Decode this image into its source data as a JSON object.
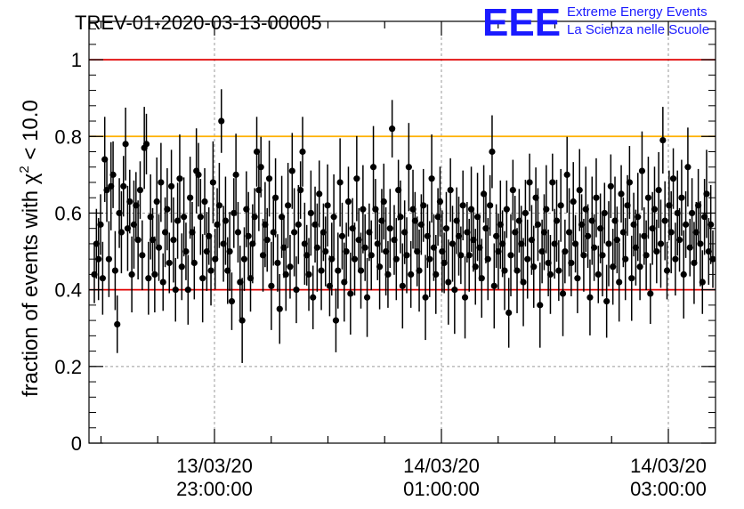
{
  "chart_data": {
    "type": "scatter",
    "title": "TREV-01-2020-03-13-00005",
    "ylabel_prefix": "fraction of events with χ",
    "ylabel_exp": "2",
    "ylabel_suffix": " < 10.0",
    "xlabel": "",
    "ylim": [
      0,
      1.1
    ],
    "yticks": [
      0,
      0.2,
      0.4,
      0.6,
      0.8,
      1
    ],
    "ytick_labels": [
      "0",
      "0.2",
      "0.4",
      "0.6",
      "0.8",
      "1"
    ],
    "xticks": [
      {
        "date": "13/03/20",
        "time": "23:00:00"
      },
      {
        "date": "14/03/20",
        "time": "01:00:00"
      },
      {
        "date": "14/03/20",
        "time": "03:00:00"
      }
    ],
    "grid": true,
    "reference_lines": [
      {
        "y": 1.0,
        "color": "#e00000"
      },
      {
        "y": 0.8,
        "color": "#ffb000"
      },
      {
        "y": 0.4,
        "color": "#e00000"
      }
    ],
    "series": [
      {
        "color": "#000000",
        "values": [
          0.44,
          0.52,
          0.48,
          0.57,
          0.43,
          0.74,
          0.66,
          0.48,
          0.67,
          0.7,
          0.45,
          0.31,
          0.6,
          0.55,
          0.67,
          0.78,
          0.56,
          0.63,
          0.44,
          0.57,
          0.62,
          0.53,
          0.66,
          0.49,
          0.77,
          0.78,
          0.43,
          0.59,
          0.53,
          0.44,
          0.63,
          0.51,
          0.68,
          0.42,
          0.55,
          0.61,
          0.47,
          0.67,
          0.53,
          0.4,
          0.58,
          0.69,
          0.46,
          0.59,
          0.5,
          0.4,
          0.64,
          0.55,
          0.47,
          0.71,
          0.7,
          0.59,
          0.43,
          0.63,
          0.5,
          0.54,
          0.45,
          0.68,
          0.48,
          0.57,
          0.62,
          0.84,
          0.52,
          0.58,
          0.45,
          0.5,
          0.37,
          0.6,
          0.7,
          0.55,
          0.42,
          0.32,
          0.48,
          0.61,
          0.54,
          0.43,
          0.52,
          0.59,
          0.76,
          0.66,
          0.72,
          0.49,
          0.57,
          0.53,
          0.69,
          0.41,
          0.55,
          0.64,
          0.47,
          0.35,
          0.59,
          0.51,
          0.44,
          0.62,
          0.46,
          0.71,
          0.55,
          0.4,
          0.57,
          0.66,
          0.76,
          0.52,
          0.49,
          0.44,
          0.6,
          0.38,
          0.57,
          0.51,
          0.65,
          0.45,
          0.55,
          0.5,
          0.62,
          0.41,
          0.48,
          0.59,
          0.32,
          0.45,
          0.68,
          0.54,
          0.42,
          0.5,
          0.63,
          0.39,
          0.56,
          0.48,
          0.69,
          0.53,
          0.45,
          0.61,
          0.51,
          0.38,
          0.55,
          0.49,
          0.72,
          0.61,
          0.52,
          0.46,
          0.58,
          0.63,
          0.5,
          0.44,
          0.56,
          0.82,
          0.53,
          0.48,
          0.66,
          0.59,
          0.41,
          0.55,
          0.49,
          0.72,
          0.44,
          0.61,
          0.58,
          0.5,
          0.45,
          0.57,
          0.62,
          0.38,
          0.54,
          0.48,
          0.69,
          0.51,
          0.44,
          0.59,
          0.63,
          0.5,
          0.47,
          0.56,
          0.42,
          0.66,
          0.52,
          0.4,
          0.58,
          0.54,
          0.49,
          0.62,
          0.38,
          0.55,
          0.49,
          0.61,
          0.53,
          0.46,
          0.59,
          0.51,
          0.43,
          0.65,
          0.56,
          0.48,
          0.62,
          0.76,
          0.41,
          0.54,
          0.5,
          0.57,
          0.52,
          0.45,
          0.61,
          0.34,
          0.49,
          0.66,
          0.55,
          0.45,
          0.58,
          0.52,
          0.42,
          0.6,
          0.48,
          0.68,
          0.53,
          0.46,
          0.64,
          0.57,
          0.36,
          0.5,
          0.55,
          0.61,
          0.47,
          0.44,
          0.68,
          0.52,
          0.58,
          0.45,
          0.62,
          0.39,
          0.5,
          0.7,
          0.55,
          0.47,
          0.63,
          0.52,
          0.43,
          0.66,
          0.57,
          0.49,
          0.61,
          0.54,
          0.38,
          0.58,
          0.51,
          0.64,
          0.44,
          0.56,
          0.49,
          0.6,
          0.37,
          0.52,
          0.67,
          0.46,
          0.58,
          0.53,
          0.42,
          0.65,
          0.55,
          0.48,
          0.62,
          0.68,
          0.43,
          0.57,
          0.51,
          0.59,
          0.46,
          0.71,
          0.54,
          0.49,
          0.64,
          0.39,
          0.56,
          0.61,
          0.5,
          0.66,
          0.52,
          0.79,
          0.58,
          0.45,
          0.62,
          0.55,
          0.69,
          0.48,
          0.6,
          0.53,
          0.64,
          0.44,
          0.57,
          0.72,
          0.51,
          0.6,
          0.47,
          0.55,
          0.62,
          0.52,
          0.42,
          0.59,
          0.65,
          0.5,
          0.57,
          0.48
        ]
      }
    ]
  },
  "logo": {
    "mark": "EEE",
    "line1": "Extreme Energy Events",
    "line2": "La Scienza nelle Scuole"
  }
}
